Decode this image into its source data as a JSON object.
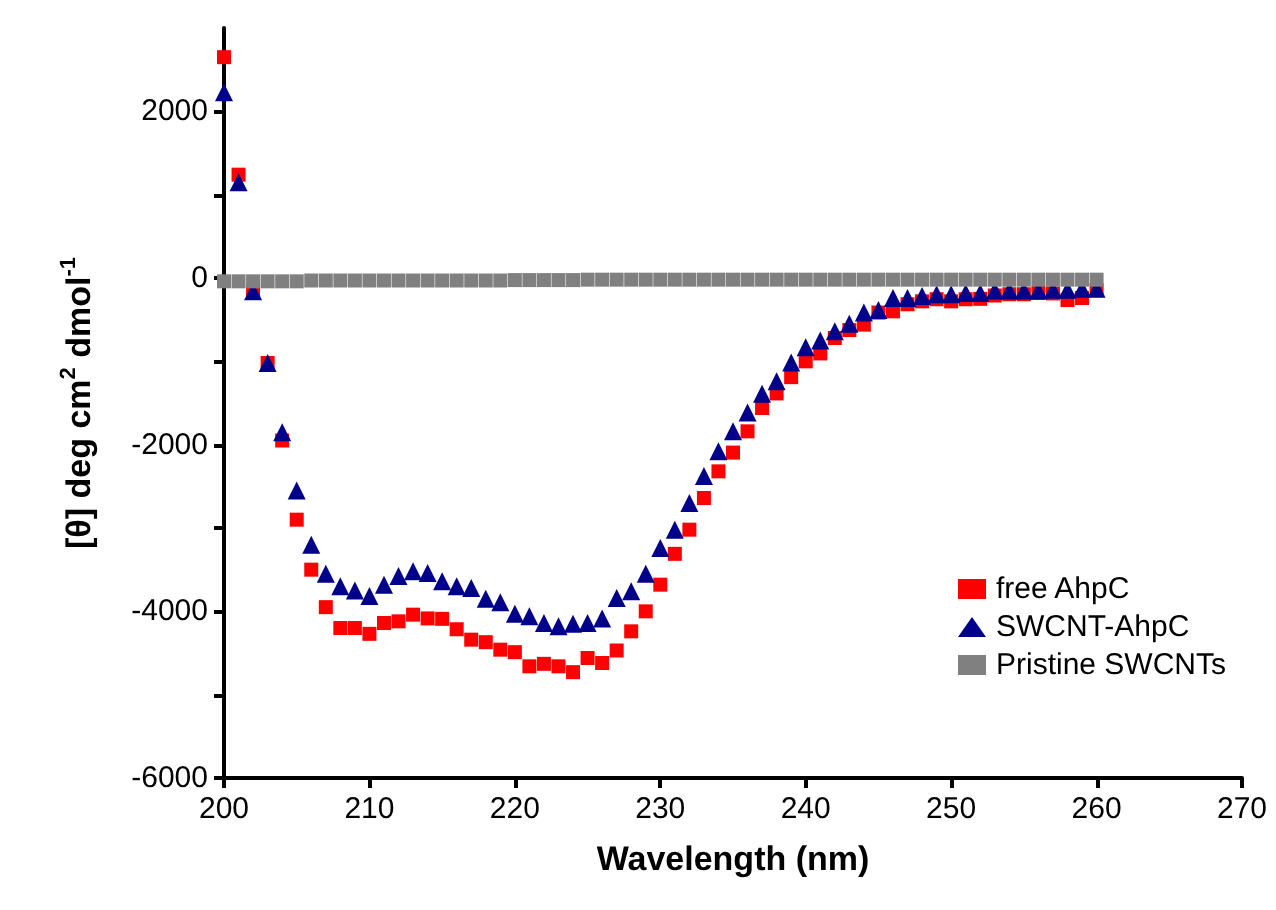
{
  "chart_data": {
    "type": "scatter",
    "xlabel": "Wavelength (nm)",
    "ylabel": "[θ] deg cm$^{2}$ dmol$^{-1}$",
    "x": [
      200,
      201,
      202,
      203,
      204,
      205,
      206,
      207,
      208,
      209,
      210,
      211,
      212,
      213,
      214,
      215,
      216,
      217,
      218,
      219,
      220,
      221,
      222,
      223,
      224,
      225,
      226,
      227,
      228,
      229,
      230,
      231,
      232,
      233,
      234,
      235,
      236,
      237,
      238,
      239,
      240,
      241,
      242,
      243,
      244,
      245,
      246,
      247,
      248,
      249,
      250,
      251,
      252,
      253,
      254,
      255,
      256,
      257,
      258,
      259,
      260
    ],
    "series": [
      {
        "name": "free AhpC",
        "color": "#ff0000",
        "marker": "square",
        "values": [
          2650,
          1240,
          -150,
          -1020,
          -1950,
          -2900,
          -3500,
          -3950,
          -4200,
          -4200,
          -4270,
          -4140,
          -4120,
          -4040,
          -4085,
          -4090,
          -4215,
          -4340,
          -4370,
          -4460,
          -4490,
          -4660,
          -4630,
          -4660,
          -4730,
          -4560,
          -4620,
          -4470,
          -4240,
          -4000,
          -3680,
          -3310,
          -3020,
          -2640,
          -2320,
          -2095,
          -1840,
          -1560,
          -1385,
          -1190,
          -1000,
          -905,
          -720,
          -625,
          -560,
          -415,
          -400,
          -315,
          -280,
          -255,
          -280,
          -255,
          -250,
          -210,
          -195,
          -195,
          -180,
          -185,
          -265,
          -240,
          -145
        ]
      },
      {
        "name": "SWCNT-AhpC",
        "color": "#00008b",
        "marker": "triangle",
        "values": [
          2230,
          1150,
          -160,
          -1020,
          -1850,
          -2550,
          -3200,
          -3550,
          -3700,
          -3750,
          -3815,
          -3680,
          -3575,
          -3520,
          -3540,
          -3640,
          -3700,
          -3720,
          -3850,
          -3890,
          -4030,
          -4060,
          -4140,
          -4180,
          -4150,
          -4140,
          -4085,
          -3840,
          -3760,
          -3550,
          -3240,
          -3020,
          -2700,
          -2375,
          -2080,
          -1840,
          -1615,
          -1390,
          -1240,
          -1015,
          -830,
          -750,
          -640,
          -550,
          -415,
          -385,
          -240,
          -240,
          -215,
          -195,
          -195,
          -180,
          -180,
          -150,
          -150,
          -150,
          -150,
          -140,
          -140,
          -130,
          -130
        ]
      },
      {
        "name": "Pristine SWCNTs",
        "color": "#808080",
        "marker": "square",
        "values": [
          -40,
          -40,
          -40,
          -40,
          -40,
          -40,
          -30,
          -30,
          -30,
          -30,
          -30,
          -30,
          -30,
          -30,
          -30,
          -30,
          -30,
          -30,
          -30,
          -30,
          -25,
          -25,
          -25,
          -25,
          -25,
          -20,
          -20,
          -20,
          -20,
          -20,
          -20,
          -20,
          -20,
          -20,
          -20,
          -20,
          -20,
          -20,
          -20,
          -20,
          -20,
          -20,
          -20,
          -20,
          -20,
          -20,
          -20,
          -20,
          -20,
          -20,
          -20,
          -20,
          -20,
          -20,
          -20,
          -20,
          -20,
          -20,
          -20,
          -20,
          -20
        ]
      }
    ],
    "xlim": [
      200,
      270
    ],
    "xticks": [
      200,
      210,
      220,
      230,
      240,
      250,
      260,
      270
    ],
    "ylim": [
      -6000,
      3000
    ],
    "yticks": [
      -6000,
      {
        "value": -5000,
        "label": null
      },
      -4000,
      {
        "value": -3000,
        "label": null
      },
      -2000,
      {
        "value": -1000,
        "label": null
      },
      0,
      {
        "value": 1000,
        "label": null
      },
      2000
    ],
    "grid": false,
    "legend": "bottom right"
  }
}
